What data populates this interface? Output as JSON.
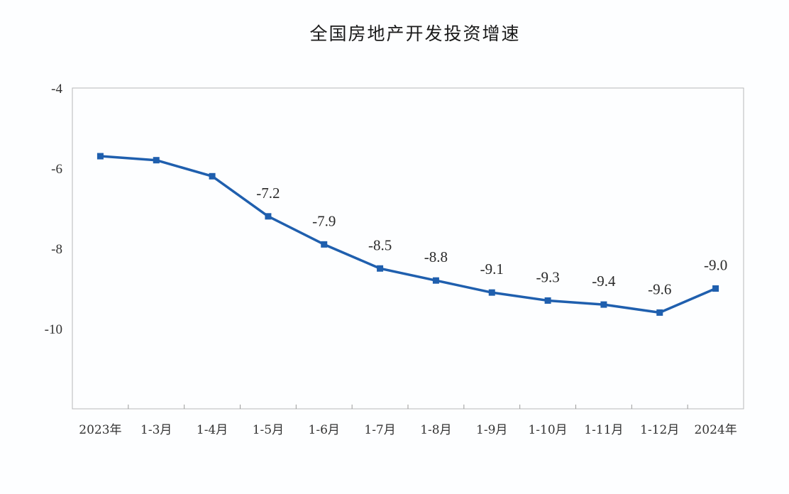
{
  "chart_data": {
    "type": "line",
    "title": "全国房地产开发投资增速",
    "xlabel": "",
    "ylabel": "",
    "categories": [
      "2023年",
      "1-3月",
      "1-4月",
      "1-5月",
      "1-6月",
      "1-7月",
      "1-8月",
      "1-9月",
      "1-10月",
      "1-11月",
      "1-12月",
      "2024年"
    ],
    "series": [
      {
        "values": [
          -5.7,
          -5.8,
          -6.2,
          -7.2,
          -7.9,
          -8.5,
          -8.8,
          -9.1,
          -9.3,
          -9.4,
          -9.6,
          -9.0
        ],
        "data_labels": [
          "",
          "",
          "",
          "-7.2",
          "-7.9",
          "-8.5",
          "-8.8",
          "-9.1",
          "-9.3",
          "-9.4",
          "-9.6",
          "-9.0"
        ]
      }
    ],
    "ylim": [
      -12,
      -4
    ],
    "yticks": [
      -4,
      -6,
      -8,
      -10
    ],
    "ytick_labels": [
      "-4",
      "-6",
      "-8",
      "-10"
    ],
    "grid": false,
    "line_color": "#1f5fae",
    "marker_color": "#1f5fae"
  }
}
